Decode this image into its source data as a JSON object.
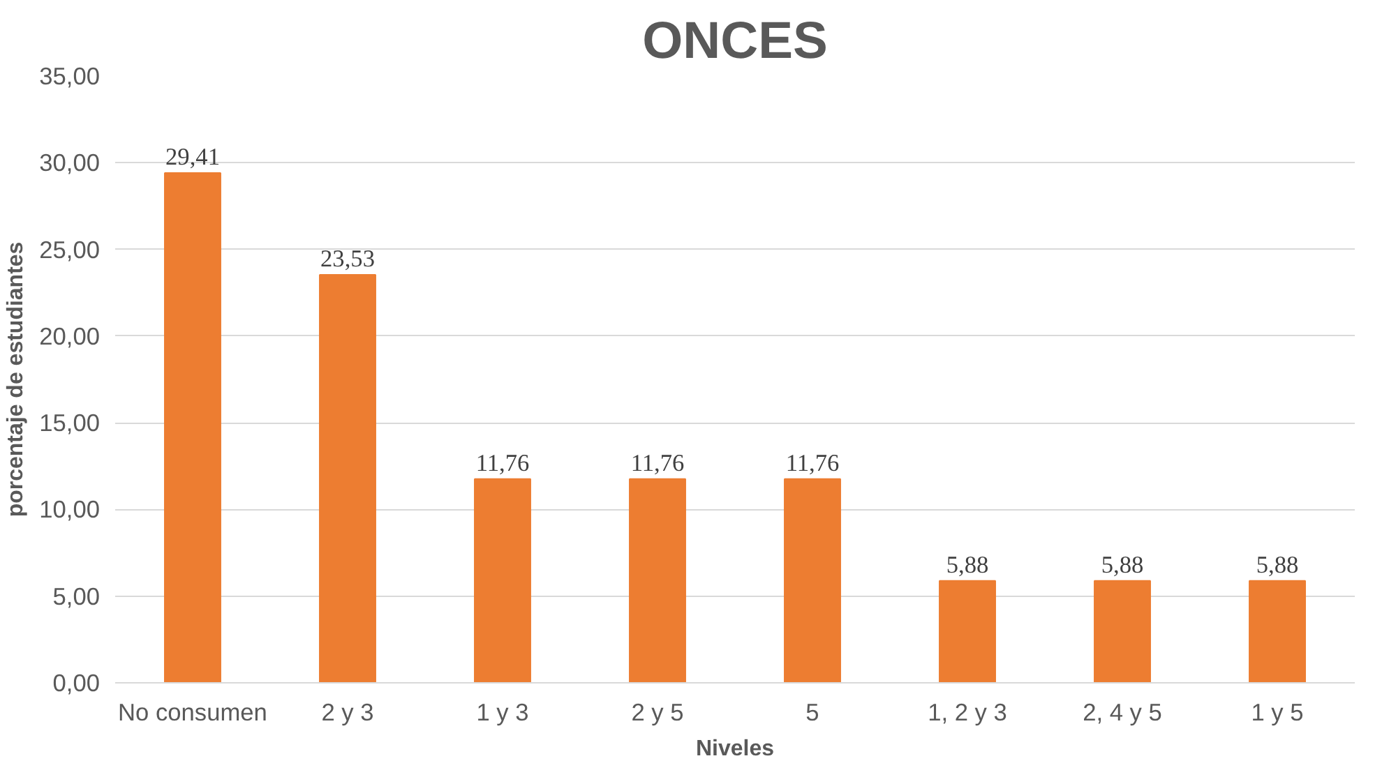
{
  "chart_data": {
    "type": "bar",
    "title": "ONCES",
    "xlabel": "Niveles",
    "ylabel": "porcentaje de estudiantes",
    "categories": [
      "No consumen",
      "2 y 3",
      "1 y 3",
      "2 y 5",
      "5",
      "1, 2 y 3",
      "2, 4 y 5",
      "1 y 5"
    ],
    "values": [
      29.41,
      23.53,
      11.76,
      11.76,
      11.76,
      5.88,
      5.88,
      5.88
    ],
    "value_labels": [
      "29,41",
      "23,53",
      "11,76",
      "11,76",
      "11,76",
      "5,88",
      "5,88",
      "5,88"
    ],
    "color": "#ed7d31",
    "ylim": [
      0,
      35
    ],
    "yticks": [
      {
        "value": 0,
        "label": "0,00"
      },
      {
        "value": 5,
        "label": "5,00"
      },
      {
        "value": 10,
        "label": "10,00"
      },
      {
        "value": 15,
        "label": "15,00"
      },
      {
        "value": 20,
        "label": "20,00"
      },
      {
        "value": 25,
        "label": "25,00"
      },
      {
        "value": 30,
        "label": "30,00"
      },
      {
        "value": 35,
        "label": "35,00"
      }
    ],
    "grid": "y"
  }
}
